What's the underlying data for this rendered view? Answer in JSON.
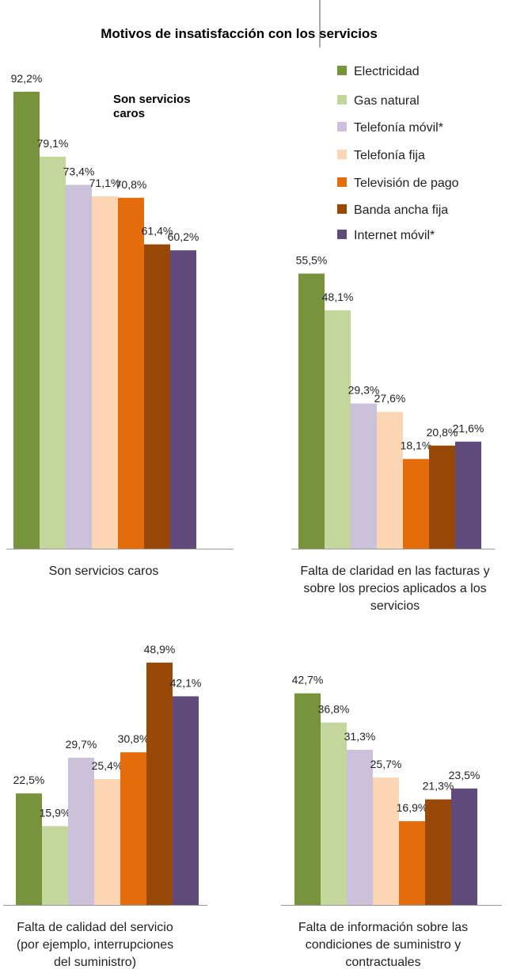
{
  "chart_data": {
    "type": "bar",
    "title": "Motivos de insatisfacción con los servicios",
    "annotation": [
      "Son servicios",
      "caros"
    ],
    "series_names": [
      "Electricidad",
      "Gas natural",
      "Telefonía móvil*",
      "Telefonía fija",
      "Televisión de pago",
      "Banda ancha fija",
      "Internet móvil*"
    ],
    "colors": [
      "#77933c",
      "#c3d69b",
      "#ccc1da",
      "#fcd5b5",
      "#e46c0a",
      "#984807",
      "#604a7b"
    ],
    "ylim": [
      0,
      100
    ],
    "panels": [
      {
        "category_lines": [
          "Son servicios caros"
        ],
        "values": [
          92.2,
          79.1,
          73.4,
          71.1,
          70.8,
          61.4,
          60.2
        ],
        "labels": [
          "92,2%",
          "79,1%",
          "73,4%",
          "71,1%",
          "70,8%",
          "61,4%",
          "60,2%"
        ]
      },
      {
        "category_lines": [
          "Falta de claridad en las facturas y",
          "sobre los precios aplicados a los",
          "servicios"
        ],
        "values": [
          55.5,
          48.1,
          29.3,
          27.6,
          18.1,
          20.8,
          21.6
        ],
        "labels": [
          "55,5%",
          "48,1%",
          "29,3%",
          "27,6%",
          "18,1%",
          "20,8%",
          "21,6%"
        ]
      },
      {
        "category_lines": [
          "Falta de calidad del servicio",
          "(por ejemplo, interrupciones",
          "del  suministro)"
        ],
        "values": [
          22.5,
          15.9,
          29.7,
          25.4,
          30.8,
          48.9,
          42.1
        ],
        "labels": [
          "22,5%",
          "15,9%",
          "29,7%",
          "25,4%",
          "30,8%",
          "48,9%",
          "42,1%"
        ]
      },
      {
        "category_lines": [
          "Falta de información sobre las",
          "condiciones de suministro y",
          "contractuales"
        ],
        "values": [
          42.7,
          36.8,
          31.3,
          25.7,
          16.9,
          21.3,
          23.5
        ],
        "labels": [
          "42,7%",
          "36,8%",
          "31,3%",
          "25,7%",
          "16,9%",
          "21,3%",
          "23,5%"
        ]
      }
    ]
  }
}
